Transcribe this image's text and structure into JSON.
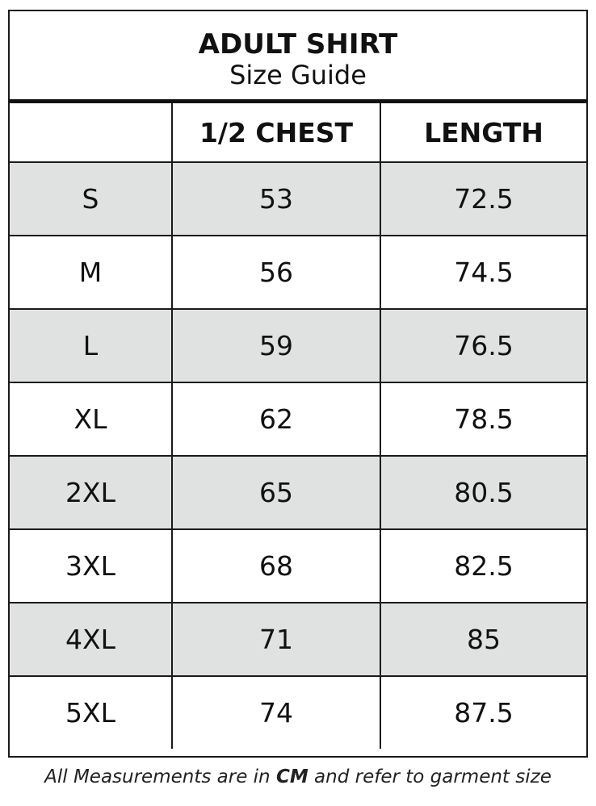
{
  "title": "ADULT SHIRT",
  "subtitle": "Size Guide",
  "headers": [
    "",
    "1/2 CHEST",
    "LENGTH"
  ],
  "rows": [
    [
      "S",
      "53",
      "72.5"
    ],
    [
      "M",
      "56",
      "74.5"
    ],
    [
      "L",
      "59",
      "76.5"
    ],
    [
      "XL",
      "62",
      "78.5"
    ],
    [
      "2XL",
      "65",
      "80.5"
    ],
    [
      "3XL",
      "68",
      "82.5"
    ],
    [
      "4XL",
      "71",
      "85"
    ],
    [
      "5XL",
      "74",
      "87.5"
    ]
  ],
  "footer": {
    "before": "All Measurements are in ",
    "unit": "CM",
    "after": " and refer to garment size"
  },
  "colors": {
    "shaded_row": "#e0e1e1",
    "border": "#1a1a1a"
  }
}
